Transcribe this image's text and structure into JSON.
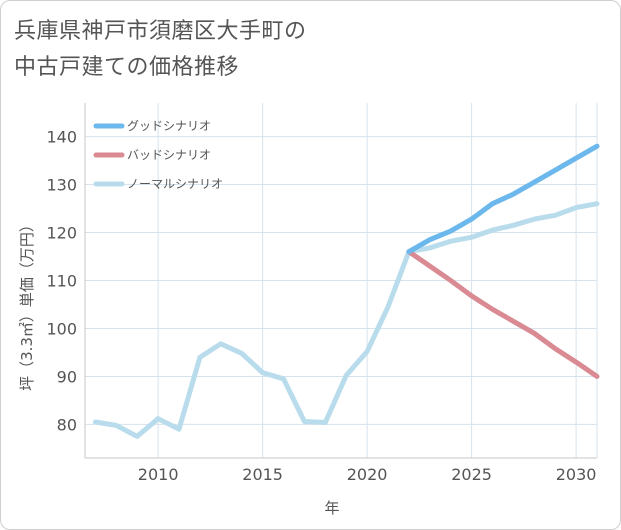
{
  "title": {
    "line1": "兵庫県神戸市須磨区大手町の",
    "line2": "中古戸建ての価格推移"
  },
  "chart_data": {
    "type": "line",
    "title": "兵庫県神戸市須磨区大手町の中古戸建ての価格推移",
    "xlabel": "年",
    "ylabel": "坪（3.3㎡）単価（万円）",
    "xlim": [
      2006.5,
      2031
    ],
    "ylim": [
      73,
      147
    ],
    "xticks": [
      2010,
      2015,
      2020,
      2025,
      2030
    ],
    "yticks": [
      80,
      90,
      100,
      110,
      120,
      130,
      140
    ],
    "grid": true,
    "legend_position": "top-left",
    "series": [
      {
        "name": "グッドシナリオ",
        "color": "#6cb8ec",
        "x": [
          2022,
          2023,
          2024,
          2025,
          2026,
          2027,
          2028,
          2029,
          2030,
          2031
        ],
        "y": [
          116,
          118.5,
          120.3,
          122.8,
          126.0,
          128.0,
          130.5,
          133.0,
          135.5,
          138.0
        ]
      },
      {
        "name": "バッドシナリオ",
        "color": "#d98a92",
        "x": [
          2022,
          2023,
          2024,
          2025,
          2026,
          2027,
          2028,
          2029,
          2030,
          2031
        ],
        "y": [
          116,
          113.0,
          110.0,
          106.8,
          104.0,
          101.5,
          99.0,
          95.8,
          93.0,
          90.0
        ]
      },
      {
        "name": "ノーマルシナリオ",
        "color": "#b8dcec",
        "x": [
          2007,
          2008,
          2009,
          2010,
          2011,
          2012,
          2013,
          2014,
          2015,
          2016,
          2017,
          2018,
          2019,
          2020,
          2021,
          2022,
          2023,
          2024,
          2025,
          2026,
          2027,
          2028,
          2029,
          2030,
          2031
        ],
        "y": [
          80.5,
          79.8,
          77.5,
          81.2,
          79.0,
          94.0,
          96.8,
          94.8,
          90.8,
          89.5,
          80.6,
          80.4,
          90.2,
          95.2,
          104.5,
          116,
          116.8,
          118.2,
          119.0,
          120.5,
          121.5,
          122.8,
          123.6,
          125.2,
          126.0
        ]
      }
    ]
  }
}
